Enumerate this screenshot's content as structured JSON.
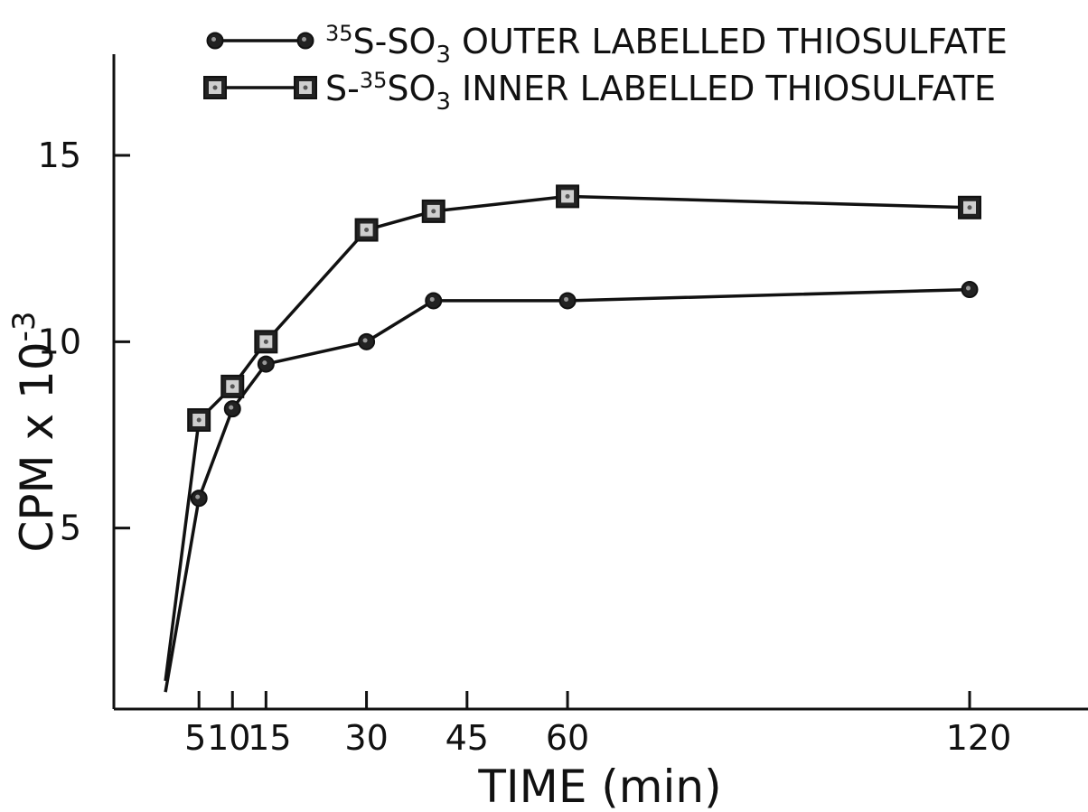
{
  "chart_data": {
    "type": "line",
    "xlabel": "TIME (min)",
    "ylabel": "CPM x 10",
    "ylabel_exponent": "-3",
    "xlim": [
      -10,
      155
    ],
    "ylim": [
      0.5,
      17.5
    ],
    "x_ticks": [
      5,
      10,
      15,
      30,
      45,
      60,
      120
    ],
    "x_tick_labels": [
      "5",
      "10",
      "15",
      "30",
      "45",
      "60",
      "120"
    ],
    "y_ticks": [
      5,
      10,
      15
    ],
    "y_tick_labels": [
      "5",
      "10",
      "15"
    ],
    "grid": false,
    "legend_position": "top",
    "series": [
      {
        "name": "S-SO OUTER LABELLED THIOSULFATE",
        "name_parts": {
          "pre_sup": "35",
          "base": "S-SO",
          "sub": "3",
          "rest": " OUTER LABELLED THIOSULFATE"
        },
        "marker": "circle",
        "x": [
          0,
          5,
          10,
          15,
          30,
          40,
          60,
          120
        ],
        "y": [
          0.6,
          5.8,
          8.2,
          9.4,
          10.0,
          11.1,
          11.1,
          11.4
        ]
      },
      {
        "name": "S-SO INNER LABELLED THIOSULFATE",
        "name_parts": {
          "pre": "S-",
          "sup": "35",
          "base": "SO",
          "sub": "3",
          "rest": " INNER LABELLED THIOSULFATE"
        },
        "marker": "square",
        "x": [
          0,
          5,
          10,
          15,
          30,
          40,
          60,
          120
        ],
        "y": [
          0.9,
          7.9,
          8.8,
          10.0,
          13.0,
          13.5,
          13.9,
          13.6
        ]
      }
    ]
  }
}
